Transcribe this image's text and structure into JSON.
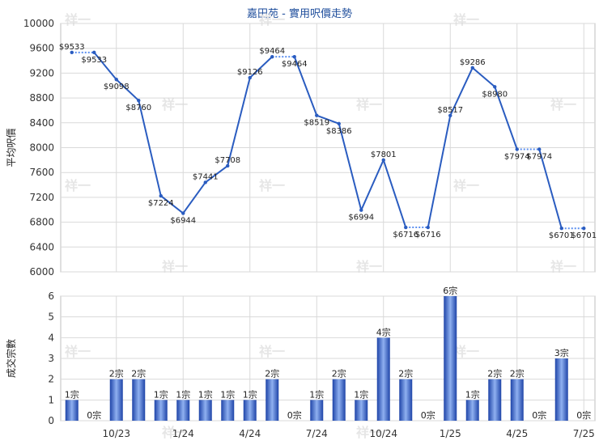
{
  "title": "嘉田苑 - 實用呎價走勢",
  "watermark": "祥一",
  "colors": {
    "line": "#2a5cc0",
    "dashed": "#5b8ff0",
    "grid": "#d9d9d9",
    "bar_dark": "#1e44a8",
    "bar_light": "#8fb0f0"
  },
  "chart_data": [
    {
      "type": "line",
      "ylabel": "平均呎價",
      "ylim": [
        6000,
        10000
      ],
      "yticks": [
        "6000",
        "6400",
        "6800",
        "7200",
        "7600",
        "8000",
        "8400",
        "8800",
        "9200",
        "9600",
        "10000"
      ],
      "grid": true,
      "points": [
        {
          "value": 9533,
          "label": "$9533",
          "observed": true
        },
        {
          "value": 9533,
          "label": "$9533",
          "observed": false
        },
        {
          "value": 9098,
          "label": "$9098",
          "observed": true
        },
        {
          "value": 8760,
          "label": "$8760",
          "observed": true
        },
        {
          "value": 7224,
          "label": "$7224",
          "observed": true
        },
        {
          "value": 6944,
          "label": "$6944",
          "observed": true
        },
        {
          "value": 7441,
          "label": "$7441",
          "observed": true
        },
        {
          "value": 7708,
          "label": "$7708",
          "observed": true
        },
        {
          "value": 9126,
          "label": "$9126",
          "observed": true
        },
        {
          "value": 9464,
          "label": "$9464",
          "observed": true
        },
        {
          "value": 9464,
          "label": "$9464",
          "observed": false
        },
        {
          "value": 8519,
          "label": "$8519",
          "observed": true
        },
        {
          "value": 8386,
          "label": "$8386",
          "observed": true
        },
        {
          "value": 6994,
          "label": "$6994",
          "observed": true
        },
        {
          "value": 7801,
          "label": "$7801",
          "observed": true
        },
        {
          "value": 6716,
          "label": "$6716",
          "observed": true
        },
        {
          "value": 6716,
          "label": "$6716",
          "observed": false
        },
        {
          "value": 8517,
          "label": "$8517",
          "observed": true
        },
        {
          "value": 9286,
          "label": "$9286",
          "observed": true
        },
        {
          "value": 8980,
          "label": "$8980",
          "observed": true
        },
        {
          "value": 7974,
          "label": "$7974",
          "observed": true
        },
        {
          "value": 7974,
          "label": "$7974",
          "observed": false
        },
        {
          "value": 6701,
          "label": "$6701",
          "observed": true
        },
        {
          "value": 6701,
          "label": "$6701",
          "observed": false
        }
      ]
    },
    {
      "type": "bar",
      "ylabel": "成交宗數",
      "ylim": [
        0,
        6
      ],
      "yticks": [
        "0",
        "1",
        "2",
        "3",
        "4",
        "5",
        "6"
      ],
      "grid": true,
      "xticks": [
        {
          "index": 2,
          "label": "10/23"
        },
        {
          "index": 5,
          "label": "1/24"
        },
        {
          "index": 8,
          "label": "4/24"
        },
        {
          "index": 11,
          "label": "7/24"
        },
        {
          "index": 14,
          "label": "10/24"
        },
        {
          "index": 17,
          "label": "1/25"
        },
        {
          "index": 20,
          "label": "4/25"
        },
        {
          "index": 23,
          "label": "7/25"
        }
      ],
      "values": [
        1,
        0,
        2,
        2,
        1,
        1,
        1,
        1,
        1,
        2,
        0,
        1,
        2,
        1,
        4,
        2,
        0,
        6,
        1,
        2,
        2,
        0,
        3,
        0
      ],
      "labels": [
        "1宗",
        "0宗",
        "2宗",
        "2宗",
        "1宗",
        "1宗",
        "1宗",
        "1宗",
        "1宗",
        "2宗",
        "0宗",
        "1宗",
        "2宗",
        "1宗",
        "4宗",
        "2宗",
        "0宗",
        "6宗",
        "1宗",
        "2宗",
        "2宗",
        "0宗",
        "3宗",
        "0宗"
      ]
    }
  ]
}
